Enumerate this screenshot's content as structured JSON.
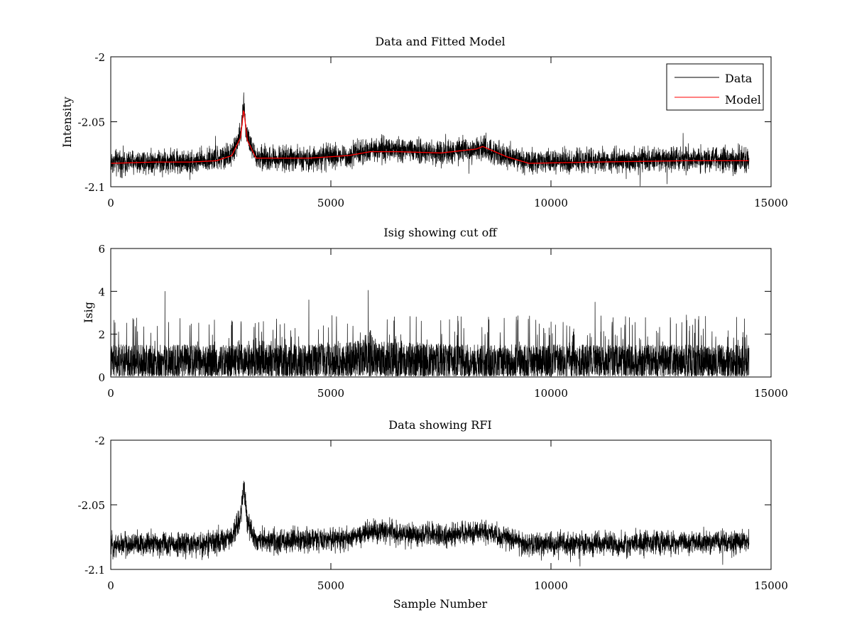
{
  "chart_data": [
    {
      "type": "line",
      "title": "Data and Fitted Model",
      "xlabel": "",
      "ylabel": "Intensity",
      "xlim": [
        0,
        15000
      ],
      "ylim": [
        -2.1,
        -2.0
      ],
      "xticks": [
        0,
        5000,
        10000,
        15000
      ],
      "xtick_labels": [
        "0",
        "5000",
        "10000",
        "15000"
      ],
      "yticks": [
        -2.1,
        -2.05,
        -2.0
      ],
      "ytick_labels": [
        "-2.1",
        "-2.05",
        "-2"
      ],
      "grid": false,
      "legend": {
        "position": "top-right",
        "entries": [
          "Data",
          "Model"
        ]
      },
      "series": [
        {
          "name": "Data",
          "color": "#000000",
          "style": "noisy",
          "x": [
            0,
            1000,
            1800,
            2400,
            2750,
            2950,
            3020,
            3100,
            3300,
            4500,
            5400,
            5900,
            6500,
            7500,
            8300,
            8450,
            9000,
            9500,
            11000,
            13000,
            14500
          ],
          "values": [
            -2.081,
            -2.08,
            -2.081,
            -2.079,
            -2.075,
            -2.06,
            -2.036,
            -2.062,
            -2.078,
            -2.078,
            -2.076,
            -2.071,
            -2.072,
            -2.074,
            -2.071,
            -2.07,
            -2.076,
            -2.081,
            -2.08,
            -2.079,
            -2.079
          ],
          "noise": 0.0045
        },
        {
          "name": "Model",
          "color": "#ff0000",
          "style": "smooth",
          "x": [
            0,
            1000,
            1800,
            2400,
            2750,
            2950,
            3020,
            3100,
            3300,
            4500,
            5400,
            5900,
            6500,
            7500,
            8300,
            8450,
            9000,
            9500,
            11000,
            13000,
            14500
          ],
          "values": [
            -2.082,
            -2.081,
            -2.081,
            -2.08,
            -2.076,
            -2.062,
            -2.04,
            -2.064,
            -2.078,
            -2.078,
            -2.076,
            -2.073,
            -2.073,
            -2.074,
            -2.071,
            -2.069,
            -2.077,
            -2.082,
            -2.081,
            -2.08,
            -2.08
          ]
        }
      ]
    },
    {
      "type": "line",
      "title": "Isig showing cut off",
      "xlabel": "",
      "ylabel": "Isig",
      "xlim": [
        0,
        15000
      ],
      "ylim": [
        0,
        6
      ],
      "xticks": [
        0,
        5000,
        10000,
        15000
      ],
      "xtick_labels": [
        "0",
        "5000",
        "10000",
        "15000"
      ],
      "yticks": [
        0,
        2,
        4,
        6
      ],
      "ytick_labels": [
        "0",
        "2",
        "4",
        "6"
      ],
      "grid": false,
      "series": [
        {
          "name": "Isig",
          "color": "#000000",
          "style": "spiky",
          "x": [
            0,
            2000,
            4000,
            5700,
            5850,
            6000,
            8000,
            10000,
            12000,
            14500
          ],
          "values": [
            0.8,
            0.8,
            0.8,
            0.9,
            1.3,
            0.9,
            0.8,
            0.8,
            0.8,
            0.8
          ],
          "noise": 0.75,
          "peaks": [
            {
              "x": 1230,
              "y": 4.0
            },
            {
              "x": 5850,
              "y": 4.05
            },
            {
              "x": 4500,
              "y": 3.6
            },
            {
              "x": 11000,
              "y": 3.5
            }
          ]
        }
      ]
    },
    {
      "type": "line",
      "title": "Data showing RFI",
      "xlabel": "Sample Number",
      "ylabel": "",
      "xlim": [
        0,
        15000
      ],
      "ylim": [
        -2.1,
        -2.0
      ],
      "xticks": [
        0,
        5000,
        10000,
        15000
      ],
      "xtick_labels": [
        "0",
        "5000",
        "10000",
        "15000"
      ],
      "yticks": [
        -2.1,
        -2.05,
        -2.0
      ],
      "ytick_labels": [
        "-2.1",
        "-2.05",
        "-2"
      ],
      "grid": false,
      "series": [
        {
          "name": "Data",
          "color": "#000000",
          "style": "noisy",
          "x": [
            0,
            1000,
            1800,
            2400,
            2750,
            2950,
            3020,
            3100,
            3300,
            4500,
            5400,
            5900,
            6500,
            7500,
            8300,
            8450,
            9000,
            9500,
            11000,
            13000,
            14500
          ],
          "values": [
            -2.081,
            -2.08,
            -2.081,
            -2.079,
            -2.075,
            -2.06,
            -2.036,
            -2.062,
            -2.078,
            -2.078,
            -2.076,
            -2.071,
            -2.072,
            -2.074,
            -2.071,
            -2.07,
            -2.076,
            -2.081,
            -2.08,
            -2.079,
            -2.079
          ],
          "noise": 0.0045
        }
      ]
    }
  ]
}
